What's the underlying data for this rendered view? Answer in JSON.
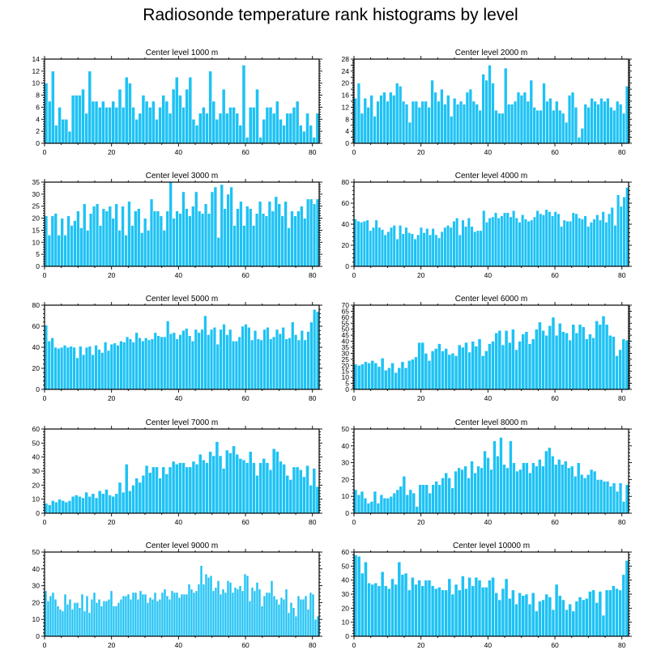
{
  "title": "Radiosonde temperature rank histograms by level",
  "chart_data": [
    {
      "type": "bar",
      "title": "Center level 1000 m",
      "xlim": [
        0,
        82
      ],
      "ylim": [
        0,
        14
      ],
      "xticks": [
        0,
        20,
        40,
        60,
        80
      ],
      "yticks": [
        0,
        2,
        4,
        6,
        8,
        10,
        12,
        14
      ],
      "values": [
        10,
        7,
        12,
        3,
        6,
        4,
        4,
        2,
        8,
        8,
        8,
        9,
        5,
        12,
        7,
        7,
        6,
        7,
        6,
        6,
        7,
        6,
        9,
        6,
        11,
        10,
        6,
        4,
        5,
        8,
        7,
        6,
        7,
        4,
        6,
        8,
        7,
        5,
        9,
        11,
        8,
        6,
        9,
        11,
        4,
        3,
        5,
        6,
        5,
        12,
        7,
        4,
        5,
        9,
        5,
        6,
        6,
        5,
        3,
        13,
        1,
        6,
        6,
        9,
        1,
        4,
        6,
        6,
        5,
        7,
        4,
        3,
        5,
        5,
        6,
        7,
        3,
        2,
        5,
        3,
        1,
        5
      ],
      "xticks_labels": [
        "0",
        "20",
        "40",
        "60",
        "80"
      ],
      "yticks_labels": [
        "0",
        "2",
        "4",
        "6",
        "8",
        "10",
        "12",
        "14"
      ]
    },
    {
      "type": "bar",
      "title": "Center level 2000 m",
      "xlim": [
        0,
        82
      ],
      "ylim": [
        0,
        28
      ],
      "xticks": [
        0,
        20,
        40,
        60,
        80
      ],
      "yticks": [
        0,
        2,
        4,
        6,
        8,
        10,
        12,
        14,
        16,
        18,
        20,
        22,
        24,
        26,
        28
      ],
      "values": [
        15,
        20,
        10,
        15,
        12,
        16,
        9,
        14,
        16,
        17,
        14,
        17,
        16,
        20,
        19,
        14,
        13,
        7,
        14,
        14,
        12,
        14,
        14,
        12,
        21,
        17,
        14,
        18,
        13,
        16,
        9,
        15,
        13,
        14,
        13,
        17,
        18,
        14,
        13,
        11,
        23,
        21,
        26,
        20,
        11,
        10,
        10,
        25,
        13,
        13,
        14,
        17,
        16,
        17,
        14,
        21,
        12,
        11,
        11,
        20,
        14,
        15,
        11,
        14,
        11,
        10,
        7,
        16,
        17,
        12,
        2,
        5,
        13,
        12,
        15,
        14,
        13,
        15,
        14,
        15,
        12,
        11,
        14,
        13,
        10,
        19
      ],
      "xticks_labels": [
        "0",
        "20",
        "40",
        "60",
        "80"
      ],
      "yticks_labels": [
        "0",
        "",
        "4",
        "",
        "8",
        "",
        "12",
        "",
        "16",
        "",
        "20",
        "",
        "24",
        "",
        "28"
      ]
    },
    {
      "type": "bar",
      "title": "Center level 3000 m",
      "xlim": [
        0,
        82
      ],
      "ylim": [
        0,
        35
      ],
      "xticks": [
        0,
        20,
        40,
        60,
        80
      ],
      "yticks": [
        0,
        5,
        10,
        15,
        20,
        25,
        30,
        35
      ],
      "values": [
        21,
        13,
        21,
        22,
        13,
        20,
        13,
        21,
        17,
        19,
        23,
        16,
        26,
        15,
        22,
        25,
        26,
        17,
        24,
        23,
        25,
        20,
        26,
        15,
        25,
        13,
        27,
        17,
        23,
        24,
        14,
        20,
        15,
        28,
        23,
        23,
        21,
        15,
        23,
        35,
        20,
        23,
        22,
        31,
        24,
        21,
        25,
        31,
        23,
        22,
        26,
        22,
        31,
        33,
        12,
        34,
        24,
        30,
        33,
        17,
        24,
        27,
        17,
        25,
        24,
        17,
        22,
        27,
        22,
        21,
        27,
        23,
        29,
        26,
        21,
        27,
        16,
        23,
        21,
        23,
        25,
        20,
        28,
        28,
        26,
        28
      ],
      "xticks_labels": [
        "0",
        "20",
        "40",
        "60",
        "80"
      ],
      "yticks_labels": [
        "0",
        "5",
        "10",
        "15",
        "20",
        "25",
        "30",
        "35"
      ]
    },
    {
      "type": "bar",
      "title": "Center level 4000 m",
      "xlim": [
        0,
        82
      ],
      "ylim": [
        0,
        80
      ],
      "xticks": [
        0,
        20,
        40,
        60,
        80
      ],
      "yticks": [
        0,
        20,
        40,
        60,
        80
      ],
      "values": [
        45,
        43,
        42,
        43,
        44,
        34,
        37,
        44,
        37,
        35,
        30,
        33,
        37,
        39,
        26,
        39,
        31,
        37,
        32,
        31,
        26,
        30,
        37,
        32,
        36,
        30,
        36,
        30,
        27,
        33,
        37,
        39,
        37,
        43,
        46,
        30,
        44,
        38,
        46,
        38,
        33,
        34,
        34,
        53,
        42,
        46,
        47,
        51,
        46,
        48,
        51,
        51,
        47,
        53,
        46,
        42,
        49,
        45,
        43,
        44,
        47,
        53,
        50,
        49,
        54,
        52,
        48,
        52,
        50,
        38,
        44,
        43,
        43,
        51,
        50,
        46,
        45,
        48,
        38,
        42,
        45,
        49,
        44,
        52,
        42,
        50,
        56,
        39,
        68,
        57,
        66,
        75
      ],
      "xticks_labels": [
        "0",
        "20",
        "40",
        "60",
        "80"
      ],
      "yticks_labels": [
        "0",
        "20",
        "40",
        "60",
        "80"
      ]
    },
    {
      "type": "bar",
      "title": "Center level 5000 m",
      "xlim": [
        0,
        82
      ],
      "ylim": [
        0,
        80
      ],
      "xticks": [
        0,
        20,
        40,
        60,
        80
      ],
      "yticks": [
        0,
        20,
        40,
        60,
        80
      ],
      "values": [
        61,
        46,
        49,
        40,
        39,
        40,
        42,
        40,
        41,
        40,
        30,
        41,
        33,
        40,
        41,
        33,
        42,
        38,
        35,
        45,
        37,
        43,
        44,
        42,
        46,
        45,
        50,
        48,
        45,
        54,
        49,
        46,
        49,
        47,
        48,
        54,
        51,
        50,
        50,
        65,
        53,
        54,
        48,
        52,
        56,
        58,
        51,
        46,
        57,
        54,
        57,
        70,
        52,
        57,
        59,
        43,
        57,
        62,
        52,
        57,
        46,
        46,
        50,
        60,
        62,
        59,
        47,
        56,
        48,
        47,
        57,
        59,
        48,
        50,
        57,
        53,
        59,
        48,
        49,
        64,
        52,
        47,
        56,
        47,
        55,
        64,
        76,
        74
      ],
      "xticks_labels": [
        "0",
        "20",
        "40",
        "60",
        "80"
      ],
      "yticks_labels": [
        "0",
        "20",
        "40",
        "60",
        "80"
      ]
    },
    {
      "type": "bar",
      "title": "Center level 6000 m",
      "xlim": [
        0,
        82
      ],
      "ylim": [
        0,
        70
      ],
      "xticks": [
        0,
        20,
        40,
        60,
        80
      ],
      "yticks": [
        0,
        5,
        10,
        15,
        20,
        25,
        30,
        35,
        40,
        45,
        50,
        55,
        60,
        65,
        70
      ],
      "values": [
        21,
        20,
        21,
        23,
        22,
        24,
        22,
        19,
        26,
        16,
        18,
        22,
        14,
        18,
        23,
        18,
        24,
        25,
        27,
        39,
        39,
        30,
        24,
        32,
        34,
        38,
        32,
        34,
        29,
        30,
        28,
        37,
        35,
        39,
        31,
        40,
        36,
        42,
        28,
        32,
        38,
        40,
        47,
        49,
        37,
        49,
        39,
        50,
        33,
        40,
        46,
        48,
        38,
        42,
        50,
        56,
        49,
        45,
        53,
        60,
        45,
        55,
        48,
        47,
        41,
        54,
        47,
        54,
        52,
        42,
        46,
        43,
        57,
        54,
        61,
        54,
        45,
        44,
        28,
        33,
        42,
        41
      ],
      "xticks_labels": [
        "0",
        "20",
        "40",
        "60",
        "80"
      ],
      "yticks_labels": [
        "0",
        "5",
        "10",
        "15",
        "20",
        "25",
        "30",
        "35",
        "40",
        "45",
        "50",
        "55",
        "60",
        "65",
        "70"
      ]
    },
    {
      "type": "bar",
      "title": "Center level 7000 m",
      "xlim": [
        0,
        82
      ],
      "ylim": [
        0,
        60
      ],
      "xticks": [
        0,
        20,
        40,
        60,
        80
      ],
      "yticks": [
        0,
        10,
        20,
        30,
        40,
        50,
        60
      ],
      "values": [
        7,
        6,
        9,
        8,
        10,
        9,
        8,
        9,
        12,
        13,
        12,
        11,
        15,
        12,
        14,
        11,
        16,
        14,
        17,
        13,
        12,
        14,
        22,
        15,
        35,
        16,
        20,
        25,
        22,
        27,
        34,
        29,
        33,
        33,
        25,
        33,
        28,
        33,
        37,
        35,
        36,
        36,
        33,
        33,
        37,
        35,
        42,
        38,
        36,
        44,
        41,
        51,
        41,
        32,
        45,
        43,
        48,
        42,
        39,
        38,
        36,
        44,
        36,
        27,
        36,
        39,
        36,
        31,
        46,
        44,
        37,
        35,
        27,
        24,
        33,
        33,
        31,
        26,
        34,
        20,
        32,
        19
      ],
      "xticks_labels": [
        "0",
        "20",
        "40",
        "60",
        "80"
      ],
      "yticks_labels": [
        "0",
        "10",
        "20",
        "30",
        "40",
        "50",
        "60"
      ]
    },
    {
      "type": "bar",
      "title": "Center level 8000 m",
      "xlim": [
        0,
        82
      ],
      "ylim": [
        0,
        50
      ],
      "xticks": [
        0,
        20,
        40,
        60,
        80
      ],
      "yticks": [
        0,
        10,
        20,
        30,
        40,
        50
      ],
      "values": [
        14,
        11,
        13,
        9,
        6,
        7,
        13,
        6,
        11,
        9,
        9,
        10,
        12,
        14,
        16,
        22,
        11,
        14,
        12,
        4,
        17,
        17,
        17,
        12,
        17,
        19,
        17,
        21,
        24,
        21,
        15,
        25,
        27,
        26,
        28,
        21,
        31,
        24,
        28,
        27,
        37,
        33,
        26,
        43,
        34,
        45,
        29,
        27,
        43,
        30,
        25,
        26,
        30,
        30,
        24,
        30,
        28,
        32,
        28,
        37,
        39,
        34,
        29,
        32,
        29,
        31,
        27,
        28,
        22,
        30,
        23,
        21,
        23,
        26,
        25,
        20,
        20,
        19,
        19,
        16,
        18,
        13,
        18,
        7,
        17
      ],
      "xticks_labels": [
        "0",
        "20",
        "40",
        "60",
        "80"
      ],
      "yticks_labels": [
        "0",
        "10",
        "20",
        "30",
        "40",
        "50"
      ]
    },
    {
      "type": "bar",
      "title": "Center level 9000 m",
      "xlim": [
        0,
        82
      ],
      "ylim": [
        0,
        50
      ],
      "xticks": [
        0,
        20,
        40,
        60,
        80
      ],
      "yticks": [
        0,
        10,
        20,
        30,
        40,
        50
      ],
      "values": [
        27,
        21,
        24,
        26,
        22,
        18,
        16,
        15,
        25,
        19,
        22,
        16,
        20,
        20,
        17,
        25,
        15,
        24,
        14,
        22,
        26,
        20,
        22,
        18,
        21,
        21,
        22,
        27,
        18,
        18,
        20,
        22,
        24,
        24,
        25,
        22,
        26,
        26,
        22,
        27,
        25,
        25,
        20,
        23,
        22,
        26,
        21,
        22,
        26,
        28,
        24,
        22,
        27,
        26,
        26,
        23,
        25,
        25,
        25,
        31,
        28,
        26,
        27,
        31,
        42,
        31,
        37,
        35,
        36,
        27,
        29,
        33,
        25,
        28,
        26,
        33,
        32,
        26,
        29,
        28,
        30,
        27,
        37,
        36,
        21,
        29,
        27,
        32,
        28,
        18,
        24,
        26,
        26,
        33,
        24,
        22,
        19,
        23,
        22,
        28,
        14,
        20,
        17,
        12,
        24,
        22,
        22,
        24,
        16,
        26,
        25,
        10,
        12
      ],
      "xticks_labels": [
        "0",
        "20",
        "40",
        "60",
        "80"
      ],
      "yticks_labels": [
        "0",
        "10",
        "20",
        "30",
        "40",
        "50"
      ]
    },
    {
      "type": "bar",
      "title": "Center level 10000 m",
      "xlim": [
        0,
        82
      ],
      "ylim": [
        0,
        60
      ],
      "xticks": [
        0,
        20,
        40,
        60,
        80
      ],
      "yticks": [
        0,
        10,
        20,
        30,
        40,
        50,
        60
      ],
      "values": [
        58,
        57,
        45,
        53,
        38,
        37,
        38,
        36,
        46,
        36,
        34,
        41,
        37,
        53,
        44,
        45,
        33,
        42,
        37,
        40,
        36,
        40,
        40,
        36,
        34,
        35,
        33,
        33,
        41,
        30,
        37,
        33,
        43,
        34,
        42,
        36,
        42,
        40,
        35,
        35,
        40,
        42,
        31,
        26,
        34,
        41,
        27,
        33,
        23,
        31,
        29,
        30,
        23,
        31,
        18,
        25,
        26,
        30,
        28,
        19,
        37,
        29,
        26,
        19,
        23,
        18,
        25,
        28,
        26,
        27,
        32,
        33,
        24,
        32,
        15,
        33,
        33,
        36,
        34,
        33,
        44,
        54
      ],
      "xticks_labels": [
        "0",
        "20",
        "40",
        "60",
        "80"
      ],
      "yticks_labels": [
        "0",
        "10",
        "20",
        "30",
        "40",
        "50",
        "60"
      ]
    }
  ]
}
